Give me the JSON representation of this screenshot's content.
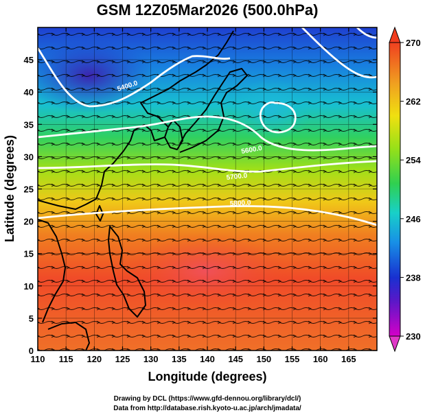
{
  "title": "GSM 12Z05Mar2026 (500.0hPa)",
  "xlabel": "Longitude (degrees)",
  "ylabel": "Latitude  (degrees)",
  "credits": {
    "line1": "Drawing by DCL (https://www.gfd-dennou.org/library/dcl/)",
    "line2": "Data from http://database.rish.kyoto-u.ac.jp/arch/jmadata/"
  },
  "axes": {
    "xlim": [
      110,
      170
    ],
    "ylim": [
      0,
      50
    ],
    "xticks": [
      "110",
      "115",
      "120",
      "125",
      "130",
      "135",
      "140",
      "145",
      "150",
      "155",
      "160",
      "165"
    ],
    "yticks": [
      "0",
      "5",
      "10",
      "15",
      "20",
      "25",
      "30",
      "35",
      "40",
      "45"
    ]
  },
  "colorbar": {
    "min": 230,
    "max": 270,
    "labels": [
      "270",
      "262",
      "254",
      "246",
      "238",
      "230"
    ]
  },
  "contours": [
    {
      "label": "5400.0",
      "value": 5400
    },
    {
      "label": "5600.0",
      "value": 5600
    },
    {
      "label": "5700.0",
      "value": 5700
    },
    {
      "label": "5800.0",
      "value": 5800
    }
  ],
  "colors": {
    "background": "#ffffff",
    "contour": "#ffffff",
    "coast": "#000000",
    "streamline": "#000000"
  }
}
